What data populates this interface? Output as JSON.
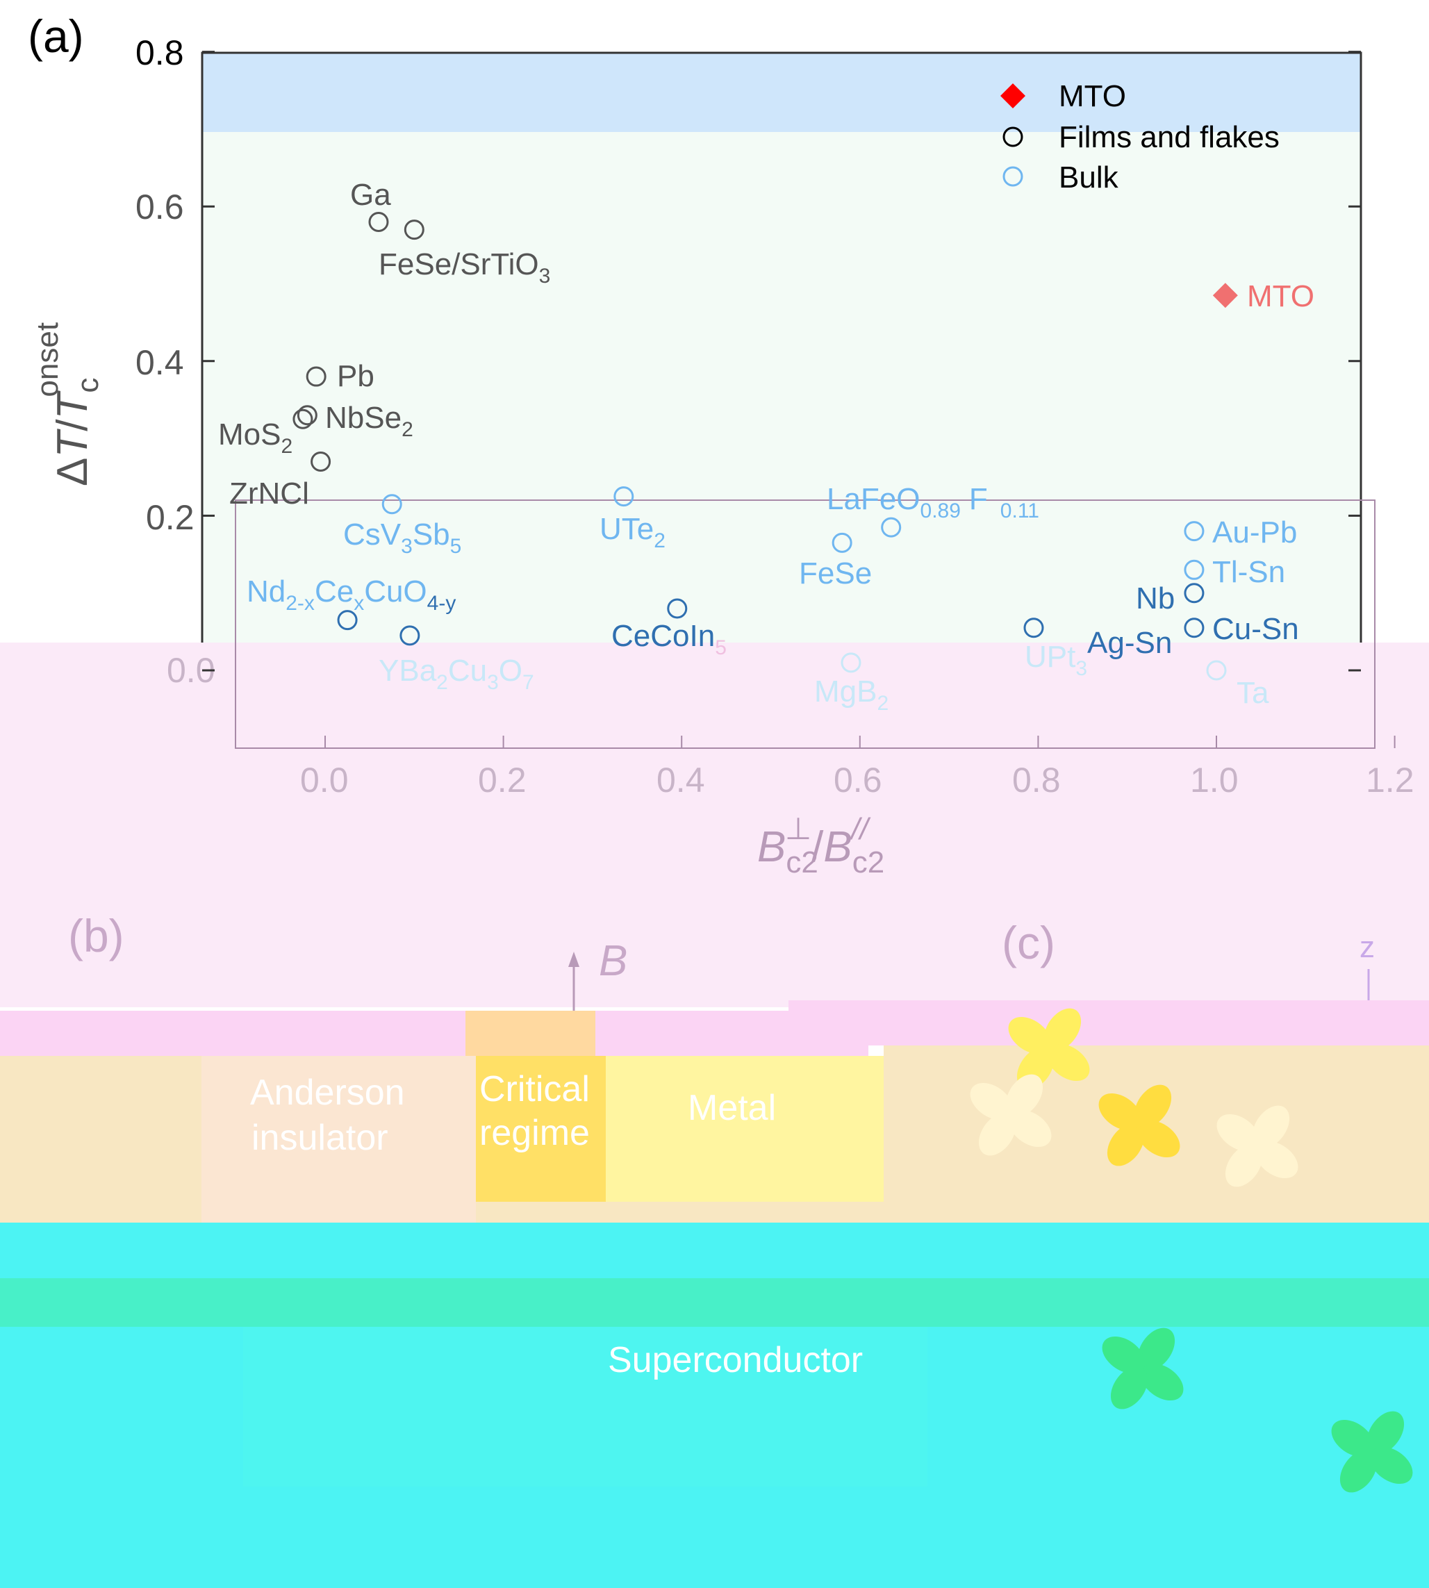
{
  "panels": {
    "a": "(a)",
    "b": "(b)",
    "c": "(c)"
  },
  "colors": {
    "mto": "#ff0000",
    "films": "#555555",
    "bulk": "#6fb6f0",
    "bulk_dark": "#2f6fb0",
    "top_band": "#cfe6fb",
    "phase_bg": "#f8e7c2",
    "critical": "#ffd966",
    "superconductor": "#4cf3f3"
  },
  "chart_data": {
    "type": "scatter",
    "xlabel": "B_c2^⊥/B_c2^//",
    "ylabel": "ΔT/T_c^onset",
    "xlim": [
      -0.1,
      1.2
    ],
    "ylim": [
      -0.1,
      0.8
    ],
    "xticks": [
      "0.0",
      "0.2",
      "0.4",
      "0.6",
      "0.8",
      "1.0",
      "1.2"
    ],
    "yticks": [
      "0.0",
      "0.2",
      "0.4",
      "0.6",
      "0.8"
    ],
    "legend": {
      "placement": "top-right",
      "entries": [
        "MTO",
        "Films and flakes",
        "Bulk"
      ]
    },
    "series": [
      {
        "name": "MTO",
        "marker": "diamond",
        "points": [
          {
            "label": "MTO",
            "x": 1.01,
            "y": 0.485
          }
        ]
      },
      {
        "name": "Films and flakes",
        "marker": "circle",
        "points": [
          {
            "label": "Ga",
            "x": 0.06,
            "y": 0.58
          },
          {
            "label": "FeSe/SrTiO3",
            "x": 0.1,
            "y": 0.57
          },
          {
            "label": "Pb",
            "x": -0.01,
            "y": 0.38
          },
          {
            "label": "NbSe2",
            "x": -0.02,
            "y": 0.33
          },
          {
            "label": "MoS2",
            "x": -0.025,
            "y": 0.325
          },
          {
            "label": "ZrNCl",
            "x": -0.005,
            "y": 0.27
          }
        ]
      },
      {
        "name": "Bulk",
        "marker": "circle",
        "points": [
          {
            "label": "CsV3Sb5",
            "x": 0.075,
            "y": 0.215
          },
          {
            "label": "UTe2",
            "x": 0.335,
            "y": 0.225
          },
          {
            "label": "LaFeO0.89F0.11",
            "x": 0.635,
            "y": 0.185
          },
          {
            "label": "FeSe",
            "x": 0.58,
            "y": 0.165
          },
          {
            "label": "Au-Pb",
            "x": 0.975,
            "y": 0.18
          },
          {
            "label": "Tl-Sn",
            "x": 0.975,
            "y": 0.13
          },
          {
            "label": "Nb",
            "x": 0.975,
            "y": 0.1
          },
          {
            "label": "Cu-Sn",
            "x": 0.975,
            "y": 0.055
          },
          {
            "label": "Nd2-xCexCuO4-y",
            "x": 0.025,
            "y": 0.065
          },
          {
            "label": "CeCoIn5",
            "x": 0.395,
            "y": 0.08
          },
          {
            "label": "UPt3",
            "x": 0.795,
            "y": 0.055
          },
          {
            "label": "YBa2Cu3O7",
            "x": 0.095,
            "y": 0.045
          },
          {
            "label": "MgB2",
            "x": 0.59,
            "y": 0.01
          },
          {
            "label": "Ta",
            "x": 1.0,
            "y": 0.0
          }
        ]
      }
    ]
  },
  "labels": {
    "Ga": "Ga",
    "FeSe_STO_main": "FeSe/SrTiO",
    "FeSe_STO_sub": "3",
    "Pb": "Pb",
    "NbSe2_main": "NbSe",
    "NbSe2_sub": "2",
    "MoS2_main": "MoS",
    "MoS2_sub": "2",
    "ZrNCl": "ZrNCl",
    "CsV3Sb5_a": "CsV",
    "CsV3Sb5_b": "3",
    "CsV3Sb5_c": "Sb",
    "CsV3Sb5_d": "5",
    "UTe2_main": "UTe",
    "UTe2_sub": "2",
    "LaFeO_a": "LaFeO",
    "LaFeO_b": "0.89",
    "LaFeO_c": "F",
    "LaFeO_d": "0.11",
    "FeSe": "FeSe",
    "AuPb": "Au-Pb",
    "TlSn": "Tl-Sn",
    "Nb": "Nb",
    "CuSn": "Cu-Sn",
    "NdCe_a": "Nd",
    "NdCe_b": "2-x",
    "NdCe_c": "Ce",
    "NdCe_d": "x",
    "NdCe_e": "CuO",
    "NdCe_f": "4-y",
    "CeCoIn_main": "CeCoIn",
    "CeCoIn_sub": "5",
    "AgSn": "Ag-Sn",
    "UPt3_main": "UPt",
    "UPt3_sub": "3",
    "YBCO_a": "YBa",
    "YBCO_b": "2",
    "YBCO_c": "Cu",
    "YBCO_d": "3",
    "YBCO_e": "O",
    "YBCO_f": "7",
    "MgB2_main": "MgB",
    "MgB2_sub": "2",
    "Ta": "Ta",
    "MTO_annot": "MTO"
  },
  "axis_text": {
    "y_delta": "Δ",
    "y_T": "T",
    "y_slash": "/",
    "y_Tc": "T",
    "y_c": "c",
    "y_onset": "onset",
    "x_B1": "B",
    "x_c2a": "c2",
    "x_perp": "⊥",
    "x_slash": "/",
    "x_B2": "B",
    "x_c2b": "c2",
    "x_par": "//"
  },
  "panel_b": {
    "B_label": "B",
    "anderson": [
      "Anderson",
      "insulator"
    ],
    "critical": [
      "Critical",
      "regime"
    ],
    "metal": "Metal",
    "superconductor": "Superconductor"
  },
  "panel_c": {
    "z_label": "z"
  }
}
